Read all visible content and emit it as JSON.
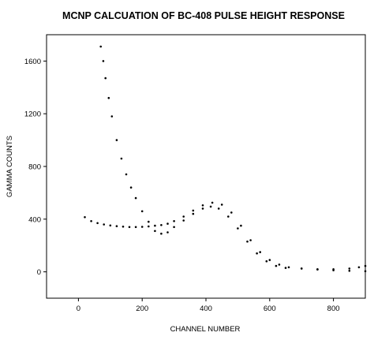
{
  "chart_data": {
    "type": "scatter",
    "title": "MCNP CALCUATION OF BC-408 PULSE HEIGHT RESPONSE",
    "xlabel": "CHANNEL NUMBER",
    "ylabel": "GAMMA COUNTS",
    "xlim": [
      -100,
      900
    ],
    "ylim": [
      -200,
      1800
    ],
    "xticks": [
      0,
      200,
      400,
      600,
      800
    ],
    "yticks": [
      0,
      400,
      800,
      1200,
      1600
    ],
    "grid": false,
    "marker": "small dots",
    "series": [
      {
        "values": [
          {
            "x": 70,
            "y": 1710
          },
          {
            "x": 78,
            "y": 1600
          },
          {
            "x": 85,
            "y": 1470
          },
          {
            "x": 95,
            "y": 1320
          },
          {
            "x": 105,
            "y": 1180
          },
          {
            "x": 120,
            "y": 1000
          },
          {
            "x": 135,
            "y": 860
          },
          {
            "x": 150,
            "y": 740
          },
          {
            "x": 165,
            "y": 640
          },
          {
            "x": 180,
            "y": 560
          },
          {
            "x": 200,
            "y": 460
          },
          {
            "x": 220,
            "y": 380
          },
          {
            "x": 240,
            "y": 310
          },
          {
            "x": 260,
            "y": 290
          },
          {
            "x": 280,
            "y": 300
          },
          {
            "x": 300,
            "y": 340
          },
          {
            "x": 330,
            "y": 390
          },
          {
            "x": 360,
            "y": 440
          },
          {
            "x": 390,
            "y": 480
          },
          {
            "x": 415,
            "y": 495
          },
          {
            "x": 440,
            "y": 480
          },
          {
            "x": 470,
            "y": 420
          },
          {
            "x": 500,
            "y": 330
          },
          {
            "x": 530,
            "y": 230
          },
          {
            "x": 560,
            "y": 140
          },
          {
            "x": 590,
            "y": 80
          },
          {
            "x": 620,
            "y": 45
          },
          {
            "x": 650,
            "y": 30
          },
          {
            "x": 700,
            "y": 25
          },
          {
            "x": 750,
            "y": 20
          },
          {
            "x": 800,
            "y": 20
          },
          {
            "x": 850,
            "y": 25
          },
          {
            "x": 880,
            "y": 35
          },
          {
            "x": 900,
            "y": 45
          }
        ]
      },
      {
        "values": [
          {
            "x": 20,
            "y": 415
          },
          {
            "x": 40,
            "y": 385
          },
          {
            "x": 60,
            "y": 370
          },
          {
            "x": 80,
            "y": 360
          },
          {
            "x": 100,
            "y": 352
          },
          {
            "x": 120,
            "y": 347
          },
          {
            "x": 140,
            "y": 343
          },
          {
            "x": 160,
            "y": 340
          },
          {
            "x": 180,
            "y": 340
          },
          {
            "x": 200,
            "y": 342
          },
          {
            "x": 220,
            "y": 345
          },
          {
            "x": 240,
            "y": 350
          },
          {
            "x": 260,
            "y": 355
          },
          {
            "x": 280,
            "y": 365
          },
          {
            "x": 300,
            "y": 385
          },
          {
            "x": 330,
            "y": 420
          },
          {
            "x": 360,
            "y": 465
          },
          {
            "x": 390,
            "y": 505
          },
          {
            "x": 420,
            "y": 525
          },
          {
            "x": 450,
            "y": 510
          },
          {
            "x": 480,
            "y": 450
          },
          {
            "x": 510,
            "y": 350
          },
          {
            "x": 540,
            "y": 240
          },
          {
            "x": 570,
            "y": 150
          },
          {
            "x": 600,
            "y": 90
          },
          {
            "x": 630,
            "y": 55
          },
          {
            "x": 660,
            "y": 35
          },
          {
            "x": 700,
            "y": 25
          },
          {
            "x": 750,
            "y": 18
          },
          {
            "x": 800,
            "y": 12
          },
          {
            "x": 850,
            "y": 8
          },
          {
            "x": 900,
            "y": 5
          }
        ]
      }
    ]
  }
}
